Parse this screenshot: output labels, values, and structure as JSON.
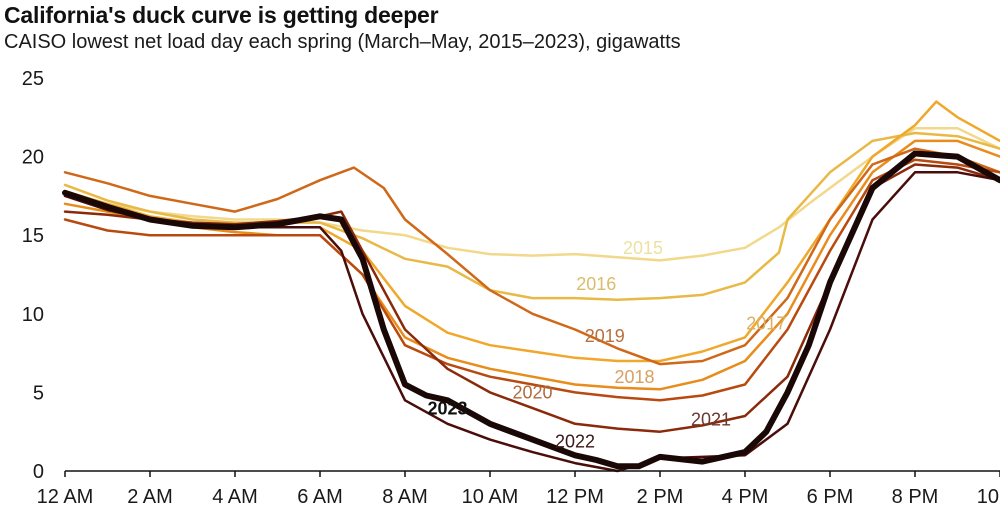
{
  "chart_data": {
    "type": "line",
    "title": "California's duck curve is getting deeper",
    "subtitle": "CAISO lowest net load day each spring (March–May, 2015–2023), gigawatts",
    "xlabel": "",
    "ylabel": "gigawatts",
    "xlim": [
      0,
      22
    ],
    "ylim": [
      0,
      25
    ],
    "grid": false,
    "legend": "inline labels",
    "x_ticks": [
      {
        "value": 0,
        "label": "12 AM"
      },
      {
        "value": 2,
        "label": "2 AM"
      },
      {
        "value": 4,
        "label": "4 AM"
      },
      {
        "value": 6,
        "label": "6 AM"
      },
      {
        "value": 8,
        "label": "8 AM"
      },
      {
        "value": 10,
        "label": "10 AM"
      },
      {
        "value": 12,
        "label": "12 PM"
      },
      {
        "value": 14,
        "label": "2 PM"
      },
      {
        "value": 16,
        "label": "4 PM"
      },
      {
        "value": 18,
        "label": "6 PM"
      },
      {
        "value": 20,
        "label": "8 PM"
      },
      {
        "value": 22,
        "label": "10"
      }
    ],
    "y_ticks": [
      {
        "value": 0,
        "label": "0"
      },
      {
        "value": 5,
        "label": "5"
      },
      {
        "value": 10,
        "label": "10"
      },
      {
        "value": 15,
        "label": "15"
      },
      {
        "value": 20,
        "label": "20"
      },
      {
        "value": 25,
        "label": "25"
      }
    ],
    "series": [
      {
        "name": "2015",
        "color": "#f2d88a",
        "label_color": "#eee0a0",
        "width": 2.5,
        "label_at": [
          13.6,
          13.8
        ],
        "x": [
          0,
          1,
          2,
          3,
          4,
          5,
          6,
          7,
          8,
          9,
          10,
          11,
          12,
          13,
          14,
          15,
          16,
          16.8,
          17.5,
          18,
          19,
          20,
          21,
          22
        ],
        "y": [
          17.5,
          17,
          16.5,
          16.2,
          16,
          16,
          15.8,
          15.3,
          15,
          14.2,
          13.8,
          13.7,
          13.8,
          13.6,
          13.4,
          13.7,
          14.2,
          15.5,
          17,
          18,
          20,
          21.8,
          21.8,
          20.5
        ]
      },
      {
        "name": "2016",
        "color": "#e8b946",
        "label_color": "#d9bd6a",
        "width": 2.5,
        "label_at": [
          12.5,
          11.5
        ],
        "x": [
          0,
          1,
          2,
          3,
          4,
          5,
          6,
          7,
          8,
          9,
          10,
          11,
          12,
          13,
          14,
          15,
          16,
          16.8,
          17,
          18,
          19,
          20,
          21,
          22
        ],
        "y": [
          18.2,
          17.2,
          16.5,
          16,
          15.8,
          15.8,
          15.8,
          14.8,
          13.5,
          13,
          11.5,
          11,
          11,
          10.9,
          11,
          11.2,
          12,
          13.9,
          16,
          19,
          21,
          21.5,
          21.3,
          20.5
        ]
      },
      {
        "name": "2017",
        "color": "#f0a82c",
        "label_color": "#d8b060",
        "width": 2.5,
        "label_at": [
          16.5,
          9.0
        ],
        "x": [
          0,
          1,
          2,
          3,
          4,
          5,
          6,
          7,
          8,
          9,
          10,
          11,
          12,
          13,
          14,
          15,
          16,
          17,
          18,
          19,
          20,
          20.5,
          21,
          22
        ],
        "y": [
          17.8,
          17,
          16.2,
          15.8,
          15.6,
          15.5,
          15.5,
          14,
          10.5,
          8.8,
          8,
          7.6,
          7.2,
          7,
          7,
          7.6,
          8.5,
          12,
          16,
          20,
          22,
          23.5,
          22.5,
          21
        ]
      },
      {
        "name": "2018",
        "color": "#e88c1c",
        "label_color": "#d8a060",
        "width": 2.5,
        "label_at": [
          13.4,
          5.6
        ],
        "x": [
          0,
          1,
          2,
          3,
          4,
          5,
          6,
          7,
          8,
          9,
          10,
          11,
          12,
          13,
          14,
          15,
          16,
          17,
          18,
          19,
          20,
          21,
          22
        ],
        "y": [
          17,
          16.5,
          16,
          15.5,
          15.2,
          15,
          15,
          12.5,
          8.5,
          7.2,
          6.5,
          6,
          5.5,
          5.3,
          5.2,
          5.8,
          7,
          10,
          15,
          19,
          21,
          21,
          20
        ]
      },
      {
        "name": "2019",
        "color": "#cf6818",
        "label_color": "#b8703c",
        "width": 2.5,
        "label_at": [
          12.7,
          8.2
        ],
        "x": [
          0,
          1,
          2,
          3,
          4,
          5,
          6,
          6.8,
          7.5,
          8,
          9,
          10,
          11,
          12,
          13,
          14,
          15,
          16,
          17,
          18,
          19,
          20,
          21,
          22
        ],
        "y": [
          19,
          18.3,
          17.5,
          17,
          16.5,
          17.3,
          18.5,
          19.3,
          18,
          16,
          13.8,
          11.5,
          10,
          9,
          7.8,
          6.8,
          7,
          8,
          11,
          16,
          19.5,
          20.5,
          20,
          19
        ]
      },
      {
        "name": "2020",
        "color": "#b84a10",
        "label_color": "#b06c40",
        "width": 2.5,
        "label_at": [
          11.0,
          4.6
        ],
        "x": [
          0,
          1,
          2,
          3,
          4,
          5,
          6,
          7,
          8,
          9,
          10,
          11,
          12,
          13,
          14,
          15,
          16,
          17,
          18,
          19,
          20,
          21,
          22
        ],
        "y": [
          16,
          15.3,
          15,
          15,
          15,
          15,
          15,
          12.5,
          8,
          6.8,
          6,
          5.5,
          5,
          4.7,
          4.5,
          4.8,
          5.5,
          9,
          14,
          18.5,
          19.8,
          19.5,
          19
        ]
      },
      {
        "name": "2021",
        "color": "#8a2a0a",
        "label_color": "#6a3a30",
        "width": 2.5,
        "label_at": [
          15.2,
          2.9
        ],
        "x": [
          0,
          1,
          2,
          3,
          4,
          5,
          6,
          6.5,
          7,
          8,
          9,
          10,
          11,
          12,
          13,
          14,
          15,
          16,
          17,
          18,
          19,
          20,
          21,
          22
        ],
        "y": [
          16.5,
          16.3,
          16,
          15.8,
          15.7,
          15.9,
          16.2,
          16.5,
          14,
          9,
          6.5,
          5,
          4,
          3,
          2.7,
          2.5,
          2.9,
          3.5,
          6,
          12,
          18,
          19.5,
          19.3,
          18.5
        ]
      },
      {
        "name": "2022",
        "color": "#4a0e0a",
        "label_color": "#3a1818",
        "width": 2.5,
        "label_at": [
          12.0,
          1.5
        ],
        "x": [
          0,
          1,
          2,
          3,
          4,
          5,
          6,
          6.5,
          7,
          8,
          9,
          10,
          11,
          12,
          13,
          14,
          15,
          16,
          17,
          18,
          19,
          20,
          21,
          22
        ],
        "y": [
          17.5,
          16.6,
          16,
          15.7,
          15.5,
          15.5,
          15.5,
          14,
          10,
          4.5,
          3,
          2,
          1.2,
          0.5,
          0,
          0.8,
          0.9,
          1,
          3,
          9,
          16,
          19,
          19,
          18.5
        ]
      },
      {
        "name": "2023",
        "color": "#1a0806",
        "label_color": "#111111",
        "width": 6,
        "bold": true,
        "label_at": [
          9.0,
          3.6
        ],
        "x": [
          0,
          1,
          2,
          3,
          4,
          5,
          6,
          6.5,
          7,
          7.5,
          8,
          8.5,
          9,
          10,
          11,
          12,
          12.5,
          13,
          13.5,
          14,
          15,
          16,
          16.5,
          17,
          17.5,
          18,
          19,
          20,
          21,
          22
        ],
        "y": [
          17.7,
          16.8,
          16,
          15.6,
          15.5,
          15.7,
          16.2,
          16,
          13.5,
          9,
          5.5,
          4.8,
          4.5,
          3,
          2,
          1,
          0.7,
          0.3,
          0.3,
          0.9,
          0.6,
          1.2,
          2.5,
          5,
          8,
          12,
          18,
          20.2,
          20,
          18.5
        ]
      }
    ]
  }
}
